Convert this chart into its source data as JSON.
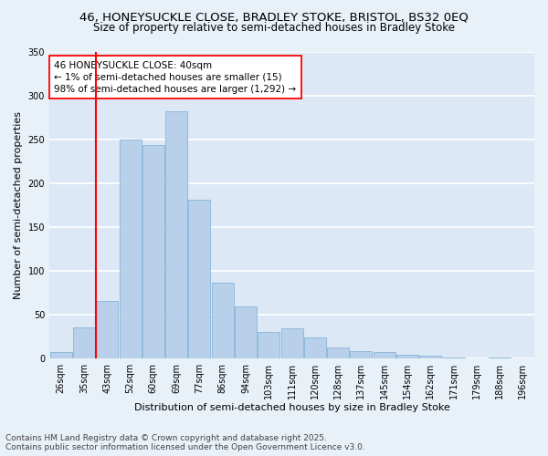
{
  "title_line1": "46, HONEYSUCKLE CLOSE, BRADLEY STOKE, BRISTOL, BS32 0EQ",
  "title_line2": "Size of property relative to semi-detached houses in Bradley Stoke",
  "xlabel": "Distribution of semi-detached houses by size in Bradley Stoke",
  "ylabel": "Number of semi-detached properties",
  "bar_color": "#b8d0ea",
  "bar_edgecolor": "#7aadd4",
  "background_color": "#dce8f5",
  "plot_bg_color": "#dce8f5",
  "fig_bg_color": "#e8f0f8",
  "grid_color": "#ffffff",
  "annotation_text": "46 HONEYSUCKLE CLOSE: 40sqm\n← 1% of semi-detached houses are smaller (15)\n98% of semi-detached houses are larger (1,292) →",
  "vline_color": "red",
  "vline_bar_index": 2,
  "categories": [
    "26sqm",
    "35sqm",
    "43sqm",
    "52sqm",
    "60sqm",
    "69sqm",
    "77sqm",
    "86sqm",
    "94sqm",
    "103sqm",
    "111sqm",
    "120sqm",
    "128sqm",
    "137sqm",
    "145sqm",
    "154sqm",
    "162sqm",
    "171sqm",
    "179sqm",
    "188sqm",
    "196sqm"
  ],
  "values": [
    7,
    35,
    65,
    250,
    243,
    282,
    181,
    86,
    59,
    30,
    34,
    24,
    12,
    8,
    7,
    4,
    3,
    1,
    0,
    1,
    0
  ],
  "ylim": [
    0,
    350
  ],
  "yticks": [
    0,
    50,
    100,
    150,
    200,
    250,
    300,
    350
  ],
  "footnote": "Contains HM Land Registry data © Crown copyright and database right 2025.\nContains public sector information licensed under the Open Government Licence v3.0.",
  "title_fontsize": 9.5,
  "subtitle_fontsize": 8.5,
  "axis_label_fontsize": 8,
  "tick_fontsize": 7,
  "annotation_fontsize": 7.5,
  "footnote_fontsize": 6.5
}
